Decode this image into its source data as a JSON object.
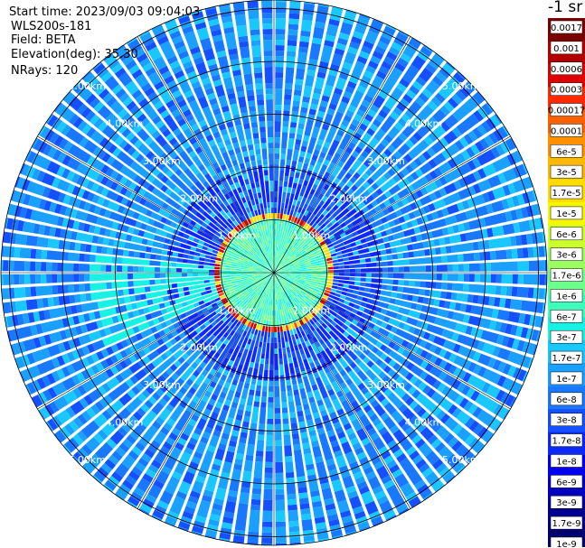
{
  "header": {
    "start_time": "Start time: 2023/09/03 09:04:03",
    "instrument": "WLS200s-181",
    "field": "Field: BETA",
    "elevation": "Elevation(deg): 35.30",
    "nrays": "NRays: 120"
  },
  "chart_data": {
    "type": "polar-ppi",
    "range_rings_km": [
      1,
      2,
      3,
      4,
      5
    ],
    "range_labels": [
      "1.00km",
      "2.00km",
      "3.00km",
      "4.00km",
      "5.00km"
    ],
    "nrays": 120,
    "max_range_km": 5.2,
    "field": "BETA",
    "colorbar": {
      "unit_label": "-1 sr",
      "tick_labels": [
        "0.0017",
        "0.001",
        "0.0006",
        "0.0003",
        "0.00017",
        "0.0001",
        "6e-5",
        "3e-5",
        "1.7e-5",
        "1e-5",
        "6e-6",
        "3e-6",
        "1.7e-6",
        "1e-6",
        "6e-7",
        "3e-7",
        "1.7e-7",
        "1e-7",
        "6e-8",
        "3e-8",
        "1.7e-8",
        "1e-8",
        "6e-9",
        "3e-9",
        "1.7e-9",
        "1e-9"
      ],
      "colors": [
        "#7a0000",
        "#b30000",
        "#e00000",
        "#ff2a00",
        "#ff6000",
        "#ff9000",
        "#ffb800",
        "#ffdc00",
        "#f6f600",
        "#ccff2e",
        "#9bff5e",
        "#6cff8c",
        "#3cffbc",
        "#18f2e4",
        "#18c8ff",
        "#1aa0ff",
        "#1878ff",
        "#1450ff",
        "#0c28ff",
        "#0000ee",
        "#0000c0",
        "#000090",
        "#000070"
      ]
    }
  }
}
